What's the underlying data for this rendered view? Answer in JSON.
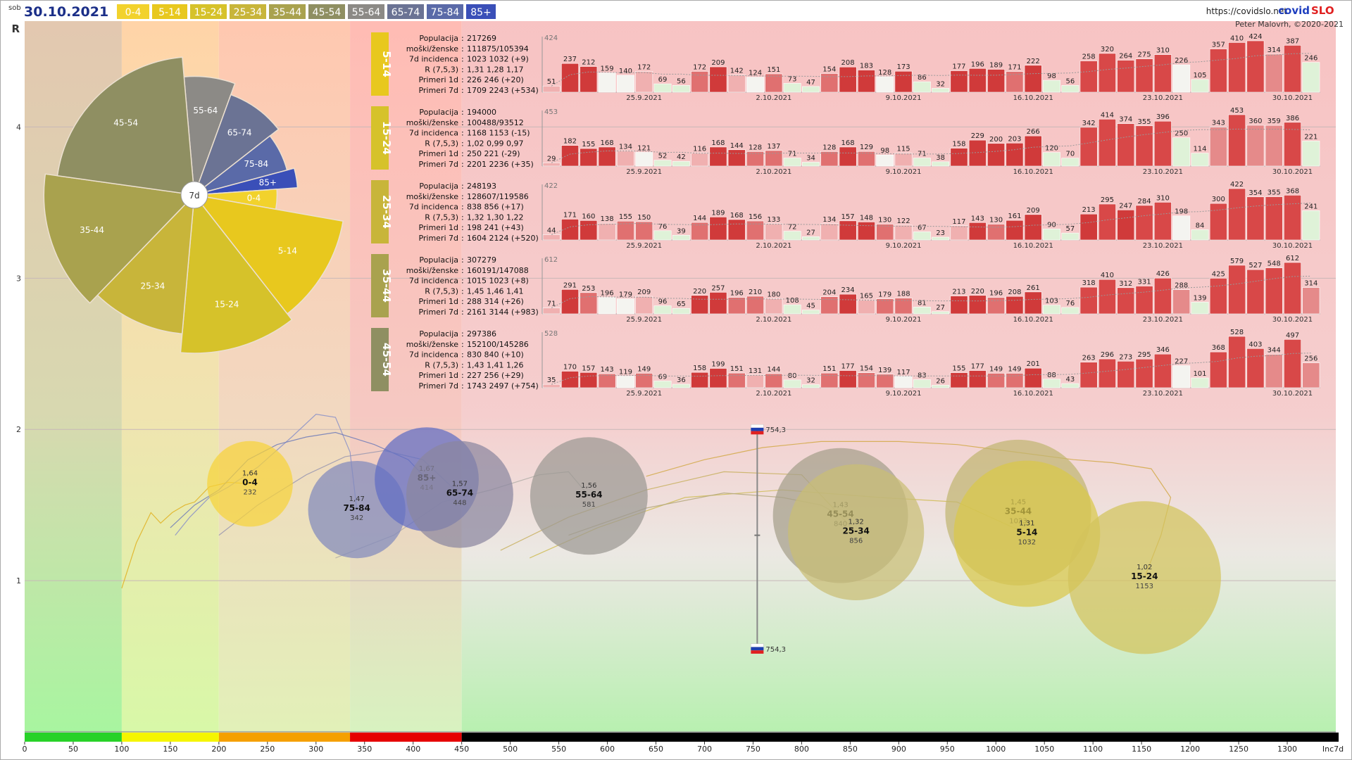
{
  "header": {
    "day": "sob",
    "date": "30.10.2021",
    "url": "https://covidslo.net",
    "brand_a": "covid",
    "brand_b": "SLO",
    "author": "Peter Malovrh, ©2020-2021",
    "age_groups": [
      {
        "label": "0-4",
        "color": "#f2d22c",
        "text": "#ffffff"
      },
      {
        "label": "5-14",
        "color": "#e8c81e",
        "text": "#ffffff"
      },
      {
        "label": "15-24",
        "color": "#d6c22a",
        "text": "#ffffff"
      },
      {
        "label": "25-34",
        "color": "#c8b53a",
        "text": "#ffffff"
      },
      {
        "label": "35-44",
        "color": "#a9a24e",
        "text": "#ffffff"
      },
      {
        "label": "45-54",
        "color": "#8f8f62",
        "text": "#ffffff"
      },
      {
        "label": "55-64",
        "color": "#8c8a86",
        "text": "#ffffff"
      },
      {
        "label": "65-74",
        "color": "#6b7394",
        "text": "#ffffff"
      },
      {
        "label": "75-84",
        "color": "#5a6aa8",
        "text": "#ffffff"
      },
      {
        "label": "85+",
        "color": "#3a4fb8",
        "text": "#ffffff"
      }
    ]
  },
  "chart_data": [
    {
      "type": "scatter",
      "xlabel": "Inc7d",
      "ylabel": "R",
      "xlim": [
        0,
        1350
      ],
      "ylim": [
        0,
        4.7
      ],
      "x_ticks": [
        0,
        50,
        100,
        150,
        200,
        250,
        300,
        350,
        400,
        450,
        500,
        550,
        600,
        650,
        700,
        750,
        800,
        850,
        900,
        950,
        1000,
        1050,
        1100,
        1150,
        1200,
        1250,
        1300
      ],
      "y_ticks": [
        1,
        2,
        3,
        4
      ],
      "x_last_label": "Inc7d",
      "y_top_label": "R",
      "incidence_bands": [
        {
          "from": 0,
          "to": 100,
          "color": "#28d228"
        },
        {
          "from": 100,
          "to": 200,
          "color": "#f5f500"
        },
        {
          "from": 200,
          "to": 335,
          "color": "#f5a000"
        },
        {
          "from": 335,
          "to": 450,
          "color": "#e60000"
        },
        {
          "from": 450,
          "to": 1375,
          "color": "#000000"
        }
      ],
      "bubbles": [
        {
          "group": "0-4",
          "x": 232,
          "r": 1.64,
          "label_r": "1,64",
          "label_x": "232",
          "color": "#f7d23a"
        },
        {
          "group": "75-84",
          "x": 342,
          "r": 1.47,
          "label_r": "1,47",
          "label_x": "342",
          "color": "#8189bd"
        },
        {
          "group": "85+",
          "x": 414,
          "r": 1.67,
          "label_r": "1,67",
          "label_x": "414",
          "color": "#5f6cc4"
        },
        {
          "group": "65-74",
          "x": 448,
          "r": 1.57,
          "label_r": "1,57",
          "label_x": "448",
          "color": "#8a86a0"
        },
        {
          "group": "55-64",
          "x": 581,
          "r": 1.56,
          "label_r": "1,56",
          "label_x": "581",
          "color": "#9b9893"
        },
        {
          "group": "45-54",
          "x": 840,
          "r": 1.43,
          "label_r": "1,43",
          "label_x": "840",
          "color": "#a5a08a"
        },
        {
          "group": "25-34",
          "x": 856,
          "r": 1.32,
          "label_r": "1,32",
          "label_x": "856",
          "color": "#c9be75"
        },
        {
          "group": "35-44",
          "x": 1023,
          "r": 1.45,
          "label_r": "1,45",
          "label_x": "1023",
          "color": "#c0b572"
        },
        {
          "group": "5-14",
          "x": 1032,
          "r": 1.31,
          "label_r": "1,31",
          "label_x": "1032",
          "color": "#d9c84a"
        },
        {
          "group": "15-24",
          "x": 1153,
          "r": 1.02,
          "label_r": "1,02",
          "label_x": "1153",
          "color": "#d2c35c"
        }
      ],
      "slovenia": {
        "x": 754.3,
        "label": "754,3",
        "r_top": 2.0,
        "r_bottom": 0.55,
        "r_mid": 1.3
      }
    },
    {
      "type": "pie",
      "center_label": "7d",
      "slices": [
        {
          "label": "0-4",
          "value": 232
        },
        {
          "label": "5-14",
          "value": 1032
        },
        {
          "label": "15-24",
          "value": 1153
        },
        {
          "label": "25-34",
          "value": 856
        },
        {
          "label": "35-44",
          "value": 1023
        },
        {
          "label": "45-54",
          "value": 840
        },
        {
          "label": "55-64",
          "value": 581
        },
        {
          "label": "65-74",
          "value": 448
        },
        {
          "label": "75-84",
          "value": 342
        },
        {
          "label": "85+",
          "value": 414
        }
      ]
    },
    {
      "type": "bar",
      "x_labels": [
        "25.9.2021",
        "2.10.2021",
        "9.10.2021",
        "16.10.2021",
        "23.10.2021",
        "30.10.2021"
      ],
      "panels": [
        {
          "group": "5-14",
          "color": "#e8c81e",
          "max_label": "424",
          "stats": [
            [
              "Populacija",
              "217269"
            ],
            [
              "moški/ženske",
              "111875/105394"
            ],
            [
              "7d incidenca",
              "1023 1032 (+9)"
            ],
            [
              "R (7,5,3)",
              "1,31 1,28 1,17"
            ],
            [
              "Primeri 1d",
              "226 246 (+20)"
            ],
            [
              "Primeri 7d",
              "1709 2243 (+534)"
            ]
          ],
          "values": [
            51,
            237,
            212,
            159,
            140,
            172,
            69,
            56,
            172,
            209,
            142,
            124,
            151,
            73,
            47,
            154,
            208,
            183,
            128,
            173,
            86,
            32,
            177,
            196,
            189,
            171,
            222,
            98,
            56,
            258,
            320,
            264,
            275,
            310,
            226,
            105,
            357,
            410,
            424,
            314,
            387,
            246
          ]
        },
        {
          "group": "15-24",
          "color": "#d6c22a",
          "max_label": "453",
          "stats": [
            [
              "Populacija",
              "194000"
            ],
            [
              "moški/ženske",
              "100488/93512"
            ],
            [
              "7d incidenca",
              "1168 1153 (-15)"
            ],
            [
              "R (7,5,3)",
              "1,02 0,99 0,97"
            ],
            [
              "Primeri 1d",
              "250 221 (-29)"
            ],
            [
              "Primeri 7d",
              "2201 2236 (+35)"
            ]
          ],
          "values": [
            29,
            182,
            155,
            168,
            134,
            121,
            52,
            42,
            116,
            168,
            144,
            128,
            137,
            71,
            34,
            128,
            168,
            129,
            98,
            115,
            71,
            38,
            158,
            229,
            200,
            203,
            266,
            120,
            70,
            342,
            414,
            374,
            355,
            396,
            250,
            114,
            343,
            453,
            360,
            359,
            386,
            221
          ]
        },
        {
          "group": "25-34",
          "color": "#c8b53a",
          "max_label": "422",
          "stats": [
            [
              "Populacija",
              "248193"
            ],
            [
              "moški/ženske",
              "128607/119586"
            ],
            [
              "7d incidenca",
              "838 856 (+17)"
            ],
            [
              "R (7,5,3)",
              "1,32 1,30 1,22"
            ],
            [
              "Primeri 1d",
              "198 241 (+43)"
            ],
            [
              "Primeri 7d",
              "1604 2124 (+520)"
            ]
          ],
          "values": [
            44,
            171,
            160,
            138,
            155,
            150,
            76,
            39,
            144,
            189,
            168,
            156,
            133,
            72,
            27,
            134,
            157,
            148,
            130,
            122,
            67,
            23,
            117,
            143,
            130,
            161,
            209,
            90,
            57,
            213,
            295,
            247,
            284,
            310,
            198,
            84,
            300,
            422,
            354,
            355,
            368,
            241
          ]
        },
        {
          "group": "35-44",
          "color": "#a9a24e",
          "max_label": "612",
          "stats": [
            [
              "Populacija",
              "307279"
            ],
            [
              "moški/ženske",
              "160191/147088"
            ],
            [
              "7d incidenca",
              "1015 1023 (+8)"
            ],
            [
              "R (7,5,3)",
              "1,45 1,46 1,41"
            ],
            [
              "Primeri 1d",
              "288 314 (+26)"
            ],
            [
              "Primeri 7d",
              "2161 3144 (+983)"
            ]
          ],
          "values": [
            71,
            291,
            253,
            196,
            179,
            209,
            96,
            65,
            220,
            257,
            196,
            210,
            180,
            108,
            45,
            204,
            234,
            165,
            179,
            188,
            81,
            27,
            213,
            220,
            196,
            208,
            261,
            103,
            76,
            318,
            410,
            312,
            331,
            426,
            288,
            139,
            425,
            579,
            527,
            548,
            612,
            314
          ]
        },
        {
          "group": "45-54",
          "color": "#8f8f62",
          "max_label": "528",
          "stats": [
            [
              "Populacija",
              "297386"
            ],
            [
              "moški/ženske",
              "152100/145286"
            ],
            [
              "7d incidenca",
              "830 840 (+10)"
            ],
            [
              "R (7,5,3)",
              "1,43 1,41 1,26"
            ],
            [
              "Primeri 1d",
              "227 256 (+29)"
            ],
            [
              "Primeri 7d",
              "1743 2497 (+754)"
            ]
          ],
          "values": [
            35,
            170,
            157,
            143,
            119,
            149,
            69,
            36,
            158,
            199,
            151,
            131,
            144,
            80,
            32,
            151,
            177,
            154,
            139,
            117,
            83,
            26,
            155,
            177,
            149,
            149,
            201,
            88,
            43,
            263,
            296,
            273,
            295,
            346,
            227,
            101,
            368,
            528,
            403,
            344,
            497,
            256
          ]
        }
      ]
    }
  ]
}
